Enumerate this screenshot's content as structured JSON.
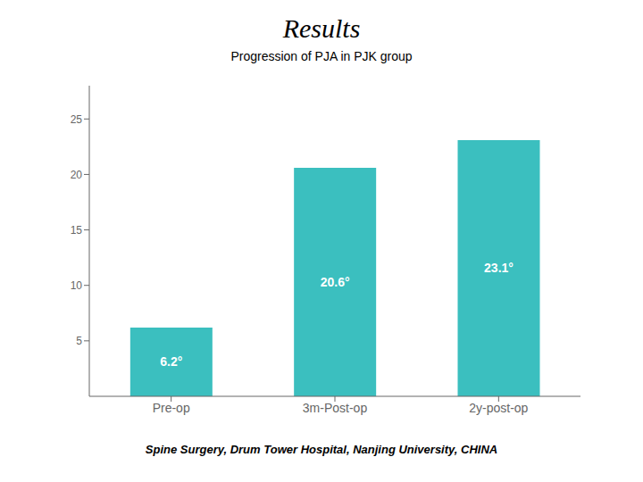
{
  "chart_data": {
    "type": "bar",
    "title": "Results",
    "subtitle": "Progression of PJA in PJK group",
    "categories": [
      "Pre-op",
      "3m-Post-op",
      "2y-post-op"
    ],
    "values": [
      6.2,
      20.6,
      23.1
    ],
    "value_labels": [
      "6.2°",
      "20.6°",
      "23.1°"
    ],
    "color": "#3bbfbf",
    "ylim": [
      0,
      28
    ],
    "yticks": [
      5,
      10,
      15,
      20,
      25
    ],
    "grid": false,
    "data_labels": true,
    "annotations": [
      "Spine Surgery, Drum Tower Hospital, Nanjing University, CHINA"
    ]
  }
}
